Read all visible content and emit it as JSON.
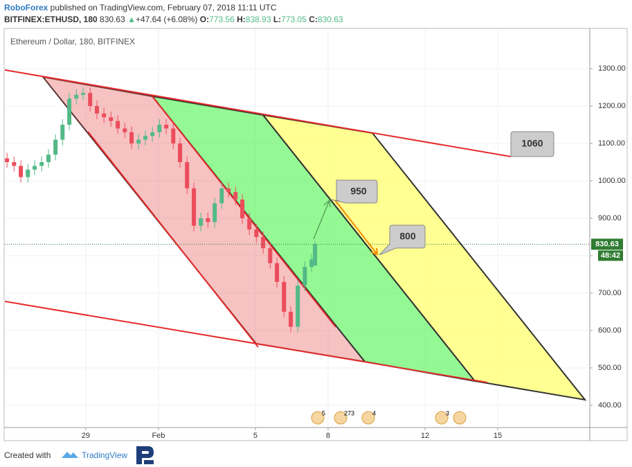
{
  "header": {
    "author": "RoboForex",
    "published": " published on TradingView.com, February 07, 2018 11:11 UTC",
    "symbol": "BITFINEX:ETHUSD, 180",
    "change_arrow": "▲",
    "change": "+47.64 (+6.08%)",
    "o_label": "O:",
    "h_label": "H:",
    "l_label": "L:",
    "c_label": "C:"
  },
  "chart_data": {
    "type": "candlestick",
    "title": "Ethereum / Dollar, 180, BITFINEX",
    "up_color": "#53b987",
    "down_color": "#eb4d5c",
    "x": [
      25.75,
      26.04,
      26.32,
      26.61,
      26.89,
      27.18,
      27.46,
      27.75,
      28.04,
      28.32,
      28.61,
      28.89,
      29.18,
      29.46,
      29.75,
      30.04,
      30.32,
      30.61,
      30.89,
      31.18,
      31.46,
      31.75,
      32.04,
      32.32,
      32.61,
      32.89,
      33.18,
      33.46,
      33.75,
      34.04,
      34.32,
      34.61,
      34.89,
      35.18,
      35.46,
      35.75,
      36.04,
      36.32,
      36.61,
      36.89,
      37.18,
      37.46,
      37.75,
      38.04,
      38.32,
      38.46
    ],
    "open": [
      1060,
      1050,
      1040,
      1010,
      1030,
      1040,
      1050,
      1070,
      1110,
      1150,
      1220,
      1230,
      1235,
      1200,
      1180,
      1170,
      1160,
      1140,
      1130,
      1100,
      1110,
      1120,
      1130,
      1150,
      1140,
      1100,
      1050,
      980,
      880,
      900,
      890,
      940,
      980,
      970,
      950,
      900,
      870,
      850,
      820,
      780,
      730,
      650,
      610,
      720,
      770,
      773.56
    ],
    "high": [
      1075,
      1065,
      1055,
      1045,
      1055,
      1065,
      1085,
      1125,
      1165,
      1235,
      1245,
      1250,
      1250,
      1215,
      1195,
      1185,
      1175,
      1155,
      1145,
      1125,
      1135,
      1145,
      1165,
      1165,
      1155,
      1115,
      1065,
      995,
      915,
      915,
      955,
      995,
      995,
      985,
      965,
      915,
      885,
      865,
      835,
      795,
      745,
      665,
      735,
      785,
      805,
      838.93
    ],
    "low": [
      1035,
      1025,
      995,
      995,
      1015,
      1025,
      1035,
      1055,
      1095,
      1135,
      1205,
      1215,
      1185,
      1165,
      1155,
      1145,
      1125,
      1115,
      1085,
      1085,
      1095,
      1105,
      1115,
      1125,
      1085,
      1035,
      965,
      865,
      865,
      875,
      875,
      925,
      955,
      935,
      885,
      855,
      835,
      805,
      765,
      715,
      635,
      595,
      595,
      705,
      755,
      773.05
    ],
    "close": [
      1050,
      1040,
      1010,
      1030,
      1040,
      1050,
      1070,
      1110,
      1150,
      1220,
      1230,
      1235,
      1200,
      1180,
      1170,
      1160,
      1140,
      1130,
      1100,
      1110,
      1120,
      1130,
      1150,
      1140,
      1100,
      1050,
      980,
      880,
      900,
      890,
      940,
      980,
      970,
      950,
      900,
      870,
      850,
      820,
      780,
      730,
      650,
      610,
      720,
      770,
      790,
      830.63
    ],
    "xlim": [
      25.66,
      49.8
    ],
    "xticks": [
      {
        "value": 29,
        "label": "29"
      },
      {
        "value": 32,
        "label": "Feb"
      },
      {
        "value": 36,
        "label": "5"
      },
      {
        "value": 39,
        "label": "8"
      },
      {
        "value": 43,
        "label": "12"
      },
      {
        "value": 46,
        "label": "15"
      }
    ],
    "ylim": [
      340.7,
      1405.6
    ],
    "yticks": [
      {
        "value": 400,
        "label": "400.00"
      },
      {
        "value": 500,
        "label": "500.00"
      },
      {
        "value": 600,
        "label": "600.00"
      },
      {
        "value": 700,
        "label": "700.00"
      },
      {
        "value": 800,
        "label": "800.00"
      },
      {
        "value": 900,
        "label": "900.00"
      },
      {
        "value": 1000,
        "label": "1000.00"
      },
      {
        "value": 1100,
        "label": "1100.00"
      },
      {
        "value": 1200,
        "label": "1200.00"
      },
      {
        "value": 1300,
        "label": "1300.00"
      }
    ],
    "grid": true,
    "countdown": "48:42",
    "annotations": [
      "950",
      "800",
      "1060"
    ],
    "events": [
      "5",
      "273",
      "4",
      "3"
    ]
  },
  "footer": {
    "created": "Created with",
    "brand": "TradingView"
  }
}
